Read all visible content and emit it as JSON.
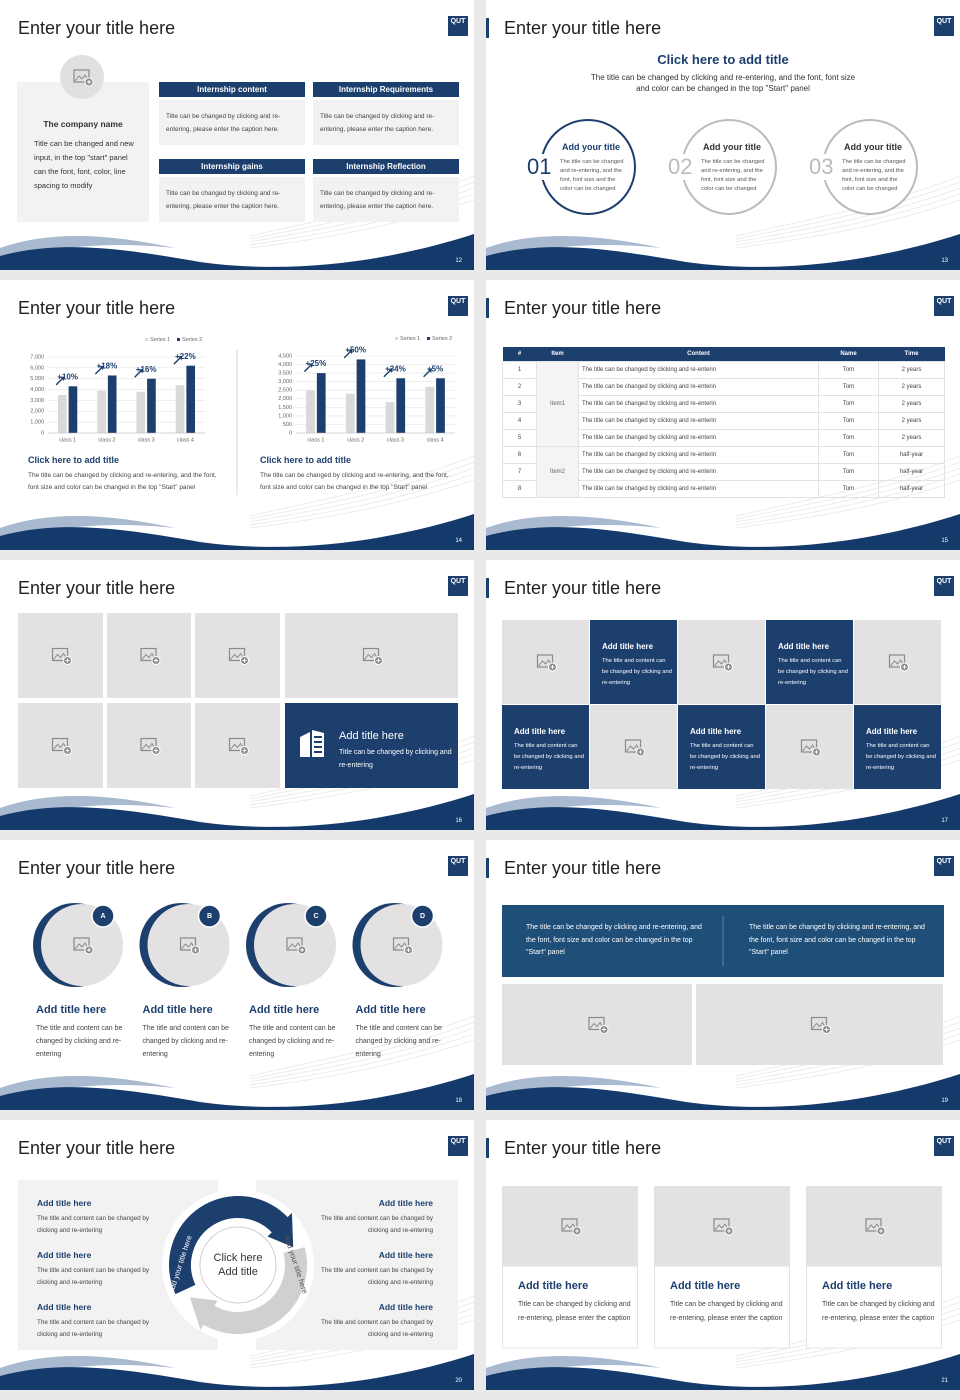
{
  "logo": "QUT",
  "slides": [
    {
      "type": "company",
      "title": "Enter your title here",
      "page": "12",
      "company": {
        "name": "The company name",
        "text": "Title can be changed and new input, in the top \"start\" panel can the font, font, color, line spacing to modify"
      },
      "boxes": [
        {
          "heading": "Internship content",
          "text": "Title can be changed by clicking and re-entering, please enter the caption here."
        },
        {
          "heading": "Internship Requirements",
          "text": "Title can be changed by clicking and re-entering, please enter the caption here."
        },
        {
          "heading": "Internship gains",
          "text": "Title can be changed by clicking and re-entering, please enter the caption here."
        },
        {
          "heading": "Internship Reflection",
          "text": "Title can be changed by clicking and re-entering, please enter the caption here."
        }
      ]
    },
    {
      "type": "circles",
      "title": "Enter your title here",
      "page": "13",
      "heading": "Click here to add title",
      "subtitle": "The title can be changed by clicking and re-entering, and the font, font size and color can be changed in the top \"Start\" panel",
      "items": [
        {
          "number": "01",
          "title": "Add your title",
          "text": "The title can be changed and re-entering, and the font, font size and the color can be changed"
        },
        {
          "number": "02",
          "title": "Add your title",
          "text": "The title can be changed and re-entering, and the font, font size and the color can be changed"
        },
        {
          "number": "03",
          "title": "Add your title",
          "text": "The title can be changed and re-entering, and the font, font size and the color can be changed"
        }
      ]
    },
    {
      "type": "charts",
      "title": "Enter your title here",
      "page": "14",
      "charts": [
        {
          "type": "bar",
          "categories": [
            "class 1",
            "class 2",
            "class 3",
            "class 4"
          ],
          "series": [
            {
              "name": "Series 1",
              "color": "#d9d9d9",
              "values": [
                3500,
                3900,
                3800,
                4400
              ]
            },
            {
              "name": "Series 2",
              "color": "#1c3f6e",
              "values": [
                4300,
                5300,
                5000,
                6200
              ]
            }
          ],
          "ylim": [
            0,
            7000
          ],
          "yticks": [
            0,
            {
              "value": 1000,
              "label": "1,000"
            },
            {
              "value": 2000,
              "label": "2,000"
            },
            {
              "value": 3000,
              "label": "3,000"
            },
            {
              "value": 4000,
              "label": "4,000"
            },
            {
              "value": 5000,
              "label": "5,000"
            },
            {
              "value": 6000,
              "label": "6,000"
            },
            {
              "value": 7000,
              "label": "7,000"
            }
          ],
          "growth_labels": [
            "+10%",
            "+18%",
            "+16%",
            "+22%"
          ],
          "caption": "Click here to add title",
          "text": "The title can be changed by clicking and re-entering, and the font, font size and color can be changed in the top \"Start\" panel"
        },
        {
          "type": "bar",
          "categories": [
            "class 1",
            "class 2",
            "class 3",
            "class 4"
          ],
          "series": [
            {
              "name": "Series 1",
              "color": "#d9d9d9",
              "values": [
                2500,
                2300,
                1800,
                2700
              ]
            },
            {
              "name": "Series 2",
              "color": "#1c3f6e",
              "values": [
                3500,
                4300,
                3200,
                3200
              ]
            }
          ],
          "ylim": [
            0,
            4500
          ],
          "yticks": [
            0,
            500,
            {
              "value": 1000,
              "label": "1,000"
            },
            {
              "value": 1500,
              "label": "1,500"
            },
            {
              "value": 2000,
              "label": "2,000"
            },
            {
              "value": 2500,
              "label": "2,500"
            },
            {
              "value": 3000,
              "label": "3,000"
            },
            {
              "value": 3500,
              "label": "3,500"
            },
            {
              "value": 4000,
              "label": "4,000"
            },
            {
              "value": 4500,
              "label": "4,500"
            }
          ],
          "growth_labels": [
            "+25%",
            "+50%",
            "+34%",
            "+5%"
          ],
          "caption": "Click here to add title",
          "text": "The title can be changed by clicking and re-entering, and the font, font size and color can be changed in the top \"Start\" panel"
        }
      ]
    },
    {
      "type": "table",
      "title": "Enter your title here",
      "page": "15",
      "table": {
        "headers": [
          "#",
          "Item",
          "Content",
          "Name",
          "Time"
        ],
        "groups": [
          {
            "item": "Item1",
            "rows": [
              [
                "1",
                "The title can be changed by clicking and re-enterin",
                "Tom",
                "2 years"
              ],
              [
                "2",
                "The title can be changed by clicking and re-enterin",
                "Tom",
                "2 years"
              ],
              [
                "3",
                "The title can be changed by clicking and re-enterin",
                "Tom",
                "2 years"
              ],
              [
                "4",
                "The title can be changed by clicking and re-enterin",
                "Tom",
                "2 years"
              ],
              [
                "5",
                "The title can be changed by clicking and re-enterin",
                "Tom",
                "2 years"
              ]
            ]
          },
          {
            "item": "Item2",
            "rows": [
              [
                "6",
                "The title can be changed by clicking and re-enterin",
                "Tom",
                "half-year"
              ],
              [
                "7",
                "The title can be changed by clicking and re-enterin",
                "Tom",
                "half-year"
              ],
              [
                "8",
                "The title can be changed by clicking and re-enterin",
                "Tom",
                "half-year"
              ]
            ]
          }
        ]
      }
    },
    {
      "type": "gallery",
      "title": "Enter your title here",
      "page": "16",
      "card": {
        "title": "Add title here",
        "text": "Title can be changed by clicking and re-entering"
      }
    },
    {
      "type": "checker",
      "title": "Enter your title here",
      "page": "17",
      "cards": [
        {
          "title": "Add title here",
          "text": "The title and content can be changed by clicking and re-entering"
        },
        {
          "title": "Add title here",
          "text": "The title and content can be changed by clicking and re-entering"
        },
        {
          "title": "Add title here",
          "text": "The title and content can be changed by clicking and re-entering"
        },
        {
          "title": "Add title here",
          "text": "The title and content can be changed by clicking and re-entering"
        },
        {
          "title": "Add title here",
          "text": "The title and content can be changed by clicking and re-entering"
        }
      ]
    },
    {
      "type": "badges",
      "title": "Enter your title here",
      "page": "18",
      "items": [
        {
          "badge": "A",
          "title": "Add title here",
          "text": "The title and content can be changed by clicking and re-entering"
        },
        {
          "badge": "B",
          "title": "Add title here",
          "text": "The title and content can be changed by clicking and re-entering"
        },
        {
          "badge": "C",
          "title": "Add title here",
          "text": "The title and content can be changed by clicking and re-entering"
        },
        {
          "badge": "D",
          "title": "Add title here",
          "text": "The title and content can be changed by clicking and re-entering"
        }
      ]
    },
    {
      "type": "banner",
      "title": "Enter your title here",
      "page": "19",
      "texts": [
        "The title can be changed by clicking and re-entering, and the font, font size and color can be changed in the top \"Start\" panel",
        "The title can be changed by clicking and re-entering, and the font, font size and color can be changed in the top \"Start\" panel"
      ]
    },
    {
      "type": "cycle",
      "title": "Enter your title here",
      "page": "20",
      "center": "Click here Add title",
      "arc_labels": [
        "Add your title here",
        "Add your title here"
      ],
      "left": [
        {
          "title": "Add title here",
          "text": "The title and content can be changed by clicking and re-entering"
        },
        {
          "title": "Add title here",
          "text": "The title and content can be changed by clicking and re-entering"
        },
        {
          "title": "Add title here",
          "text": "The title and content can be changed by clicking and re-entering"
        }
      ],
      "right": [
        {
          "title": "Add title here",
          "text": "The title and content can be changed by clicking and re-entering"
        },
        {
          "title": "Add title here",
          "text": "The title and content can be changed by clicking and re-entering"
        },
        {
          "title": "Add title here",
          "text": "The title and content can be changed by clicking and re-entering"
        }
      ]
    },
    {
      "type": "cards",
      "title": "Enter your title here",
      "page": "21",
      "cards": [
        {
          "title": "Add title here",
          "text": "Title can be changed by clicking and re-entering, please enter the caption"
        },
        {
          "title": "Add title here",
          "text": "Title can be changed by clicking and re-entering, please enter the caption"
        },
        {
          "title": "Add title here",
          "text": "Title can be changed by clicking and re-entering, please enter the caption"
        }
      ]
    }
  ]
}
